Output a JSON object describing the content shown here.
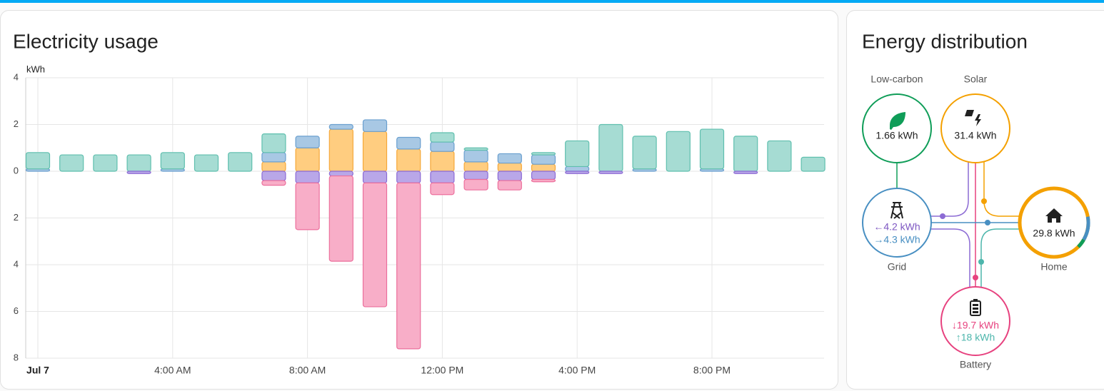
{
  "chart_data": {
    "type": "bar",
    "title": "Electricity usage",
    "y_label": "kWh",
    "categories": [
      "Jul 7",
      null,
      null,
      null,
      "4:00 AM",
      null,
      null,
      null,
      "8:00 AM",
      null,
      null,
      null,
      "12:00 PM",
      null,
      null,
      null,
      "4:00 PM",
      null,
      null,
      null,
      "8:00 PM",
      null,
      null,
      null
    ],
    "series": [
      {
        "color": "#f5a83a",
        "fill": "#ffcd80",
        "values": [
          0,
          0,
          0,
          0,
          0,
          0,
          0,
          0.4,
          1.0,
          1.8,
          1.7,
          0.95,
          0.85,
          0.4,
          0.35,
          0.3,
          0,
          0,
          0,
          0,
          0,
          0,
          0,
          0
        ]
      },
      {
        "color": "#6a9fcf",
        "fill": "#a8c8e4",
        "values": [
          0.1,
          0,
          0,
          0,
          0.1,
          0,
          0,
          0.4,
          0.5,
          0.2,
          0.5,
          0.5,
          0.4,
          0.5,
          0.4,
          0.4,
          0.2,
          0,
          0.1,
          0,
          0.1,
          0,
          0,
          0
        ]
      },
      {
        "color": "#5fbfae",
        "fill": "#a6dcd3",
        "values": [
          0.7,
          0.7,
          0.7,
          0.7,
          0.7,
          0.7,
          0.8,
          0.8,
          0,
          0,
          0,
          0,
          0.4,
          0.1,
          0,
          0.1,
          1.1,
          2.0,
          1.4,
          1.7,
          1.7,
          1.5,
          1.3,
          0.6
        ]
      },
      {
        "color": "#8c6bd4",
        "fill": "#b9a7e8",
        "values": [
          0,
          0,
          0,
          -0.1,
          0,
          0,
          0,
          -0.4,
          -0.5,
          -0.2,
          -0.5,
          -0.5,
          -0.5,
          -0.35,
          -0.4,
          -0.35,
          -0.1,
          -0.1,
          0,
          0,
          0,
          -0.1,
          0,
          0
        ]
      },
      {
        "color": "#ec6f9c",
        "fill": "#f8aec8",
        "values": [
          0,
          0,
          0,
          0,
          0,
          0,
          0,
          -0.2,
          -2.0,
          -3.65,
          -5.3,
          -7.1,
          -0.5,
          -0.45,
          -0.4,
          -0.1,
          0,
          0,
          0,
          0,
          0,
          0,
          0,
          0
        ]
      }
    ],
    "ylim": [
      -8,
      4
    ],
    "yticks": [
      4,
      2,
      0,
      {
        "value": -2,
        "label": "2"
      },
      {
        "value": -4,
        "label": "4"
      },
      {
        "value": -6,
        "label": "6"
      },
      {
        "value": -8,
        "label": "8"
      }
    ],
    "grid": true
  },
  "distribution": {
    "title": "Energy distribution",
    "low_carbon": {
      "label": "Low-carbon",
      "value": "1.66 kWh"
    },
    "solar": {
      "label": "Solar",
      "value": "31.4 kWh"
    },
    "grid": {
      "label": "Grid",
      "in": "←4.2 kWh",
      "out": "→4.3 kWh"
    },
    "home": {
      "label": "Home",
      "value": "29.8 kWh"
    },
    "battery": {
      "label": "Battery",
      "in": "↓19.7 kWh",
      "out": "↑18 kWh"
    }
  }
}
